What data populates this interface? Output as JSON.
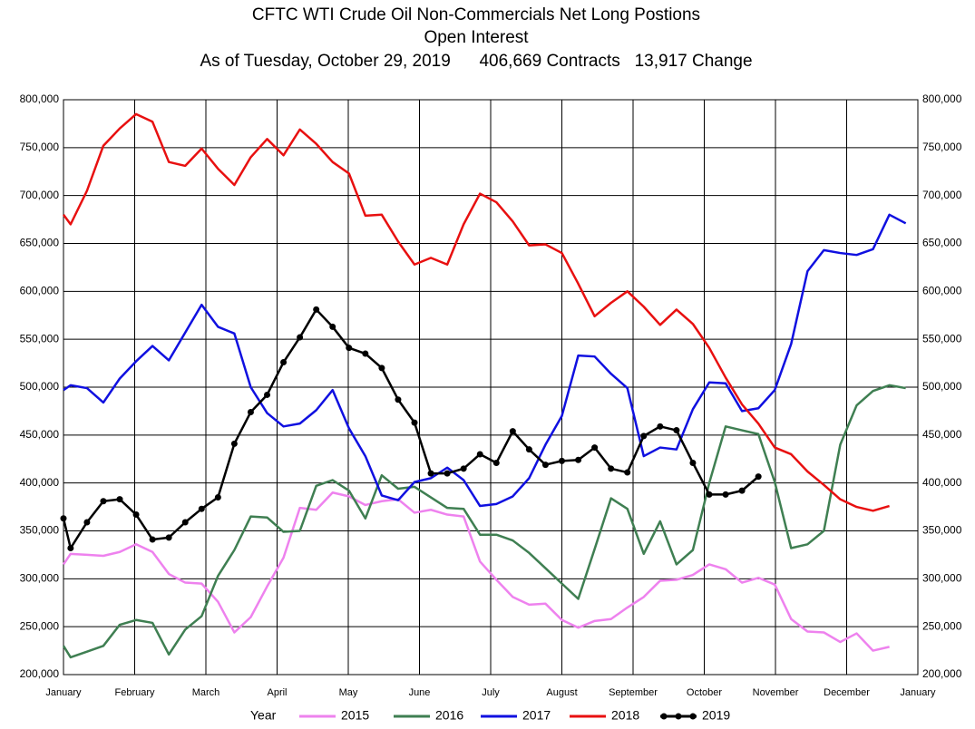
{
  "chart_data": {
    "type": "line",
    "title": "CFTC WTI Crude Oil Non-Commercials Net Long Postions",
    "subtitle": "Open Interest",
    "annotation": "As of Tuesday, October 29, 2019      406,669 Contracts   13,917 Change",
    "legend_title": "Year",
    "legend": "bottom",
    "grid": true,
    "dual_y_labels": true,
    "xlim": [
      0,
      12
    ],
    "xticks": [
      {
        "value": 0,
        "label": "January"
      },
      {
        "value": 1,
        "label": "February"
      },
      {
        "value": 2,
        "label": "March"
      },
      {
        "value": 3,
        "label": "April"
      },
      {
        "value": 4,
        "label": "May"
      },
      {
        "value": 5,
        "label": "June"
      },
      {
        "value": 6,
        "label": "July"
      },
      {
        "value": 7,
        "label": "August"
      },
      {
        "value": 8,
        "label": "September"
      },
      {
        "value": 9,
        "label": "October"
      },
      {
        "value": 10,
        "label": "November"
      },
      {
        "value": 11,
        "label": "December"
      },
      {
        "value": 12,
        "label": "January"
      }
    ],
    "ylim": [
      200000,
      800000
    ],
    "yticks": [
      {
        "value": 200000,
        "label": "200,000"
      },
      {
        "value": 250000,
        "label": "250,000"
      },
      {
        "value": 300000,
        "label": "300,000"
      },
      {
        "value": 350000,
        "label": "350,000"
      },
      {
        "value": 400000,
        "label": "400,000"
      },
      {
        "value": 450000,
        "label": "450,000"
      },
      {
        "value": 500000,
        "label": "500,000"
      },
      {
        "value": 550000,
        "label": "550,000"
      },
      {
        "value": 600000,
        "label": "600,000"
      },
      {
        "value": 650000,
        "label": "650,000"
      },
      {
        "value": 700000,
        "label": "700,000"
      },
      {
        "value": 750000,
        "label": "750,000"
      },
      {
        "value": 800000,
        "label": "800,000"
      }
    ],
    "x": [
      0,
      0.1,
      0.33,
      0.56,
      0.79,
      1.02,
      1.25,
      1.48,
      1.71,
      1.94,
      2.17,
      2.4,
      2.63,
      2.86,
      3.09,
      3.32,
      3.55,
      3.78,
      4.01,
      4.24,
      4.47,
      4.7,
      4.93,
      5.16,
      5.39,
      5.62,
      5.85,
      6.08,
      6.31,
      6.54,
      6.77,
      7.0,
      7.23,
      7.46,
      7.69,
      7.92,
      8.15,
      8.38,
      8.61,
      8.84,
      9.07,
      9.3,
      9.53,
      9.76,
      9.99,
      10.22,
      10.45,
      10.68,
      10.91,
      11.14,
      11.37,
      11.6,
      11.83
    ],
    "series": [
      {
        "name": "2015",
        "color": "#ee82ee",
        "values": [
          315000,
          326000,
          325000,
          324000,
          328000,
          336000,
          328000,
          305000,
          296000,
          295000,
          276000,
          244000,
          260000,
          292000,
          322000,
          374000,
          372000,
          390000,
          386000,
          377000,
          381000,
          383000,
          369000,
          372000,
          367000,
          365000,
          318000,
          299000,
          281000,
          273000,
          274000,
          257000,
          249000,
          256000,
          258000,
          270000,
          281000,
          298000,
          299000,
          304000,
          315000,
          310000,
          296000,
          301000,
          294000,
          258000,
          245000,
          244000,
          234000,
          243000,
          225000,
          229000,
          null
        ]
      },
      {
        "name": "2016",
        "color": "#3f7f52",
        "values": [
          230000,
          218000,
          224000,
          230000,
          252000,
          257000,
          254000,
          221000,
          247000,
          261000,
          303000,
          330000,
          365000,
          364000,
          349000,
          350000,
          397000,
          403000,
          392000,
          363000,
          408000,
          394000,
          396000,
          385000,
          374000,
          373000,
          346000,
          346000,
          340000,
          327000,
          311000,
          295000,
          279000,
          331000,
          384000,
          373000,
          326000,
          360000,
          315000,
          330000,
          400000,
          459000,
          455000,
          451000,
          401000,
          332000,
          336000,
          350000,
          440000,
          481000,
          496000,
          502000,
          499000
        ]
      },
      {
        "name": "2017",
        "color": "#1010e0",
        "values": [
          497000,
          502000,
          499000,
          484000,
          509000,
          527000,
          543000,
          528000,
          557000,
          586000,
          563000,
          556000,
          500000,
          473000,
          459000,
          462000,
          476000,
          497000,
          457000,
          428000,
          387000,
          382000,
          401000,
          405000,
          416000,
          403000,
          376000,
          378000,
          386000,
          405000,
          440000,
          470000,
          533000,
          532000,
          514000,
          499000,
          428000,
          437000,
          435000,
          477000,
          505000,
          504000,
          475000,
          478000,
          497000,
          545000,
          621000,
          643000,
          640000,
          638000,
          644000,
          680000,
          671000
        ]
      },
      {
        "name": "2018",
        "color": "#e81010",
        "values": [
          680000,
          670000,
          705000,
          752000,
          770000,
          785000,
          777000,
          735000,
          731000,
          749000,
          728000,
          711000,
          740000,
          759000,
          742000,
          769000,
          754000,
          735000,
          723000,
          679000,
          680000,
          652000,
          628000,
          635000,
          628000,
          670000,
          702000,
          693000,
          673000,
          648000,
          649000,
          640000,
          608000,
          574000,
          588000,
          600000,
          584000,
          565000,
          581000,
          566000,
          541000,
          510000,
          482000,
          462000,
          437000,
          430000,
          412000,
          398000,
          383000,
          375000,
          371000,
          376000,
          null
        ]
      },
      {
        "name": "2019",
        "color": "#000000",
        "marker": "circle",
        "values": [
          363000,
          332000,
          359000,
          381000,
          383000,
          367000,
          341000,
          343000,
          359000,
          373000,
          385000,
          441000,
          474000,
          492000,
          526000,
          552000,
          581000,
          563000,
          541000,
          535000,
          520000,
          487000,
          463000,
          410000,
          410000,
          415000,
          430000,
          421000,
          454000,
          435000,
          419000,
          423000,
          424000,
          437000,
          415000,
          411000,
          449000,
          459000,
          455000,
          421000,
          388000,
          388000,
          392000,
          406669,
          null,
          null,
          null,
          null,
          null,
          null,
          null,
          null,
          null
        ]
      }
    ]
  }
}
